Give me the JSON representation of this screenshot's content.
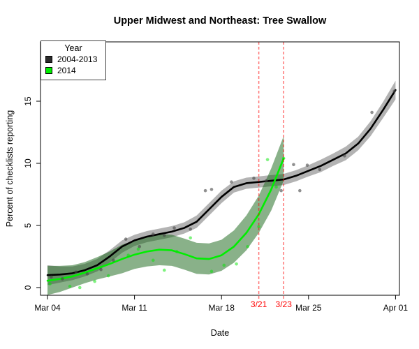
{
  "title": "Upper Midwest and Northeast: Tree Swallow",
  "legend": {
    "title": "Year",
    "items": [
      {
        "label": "2004-2013",
        "color": "#2b2b2b"
      },
      {
        "label": "2014",
        "color": "#00ee00"
      }
    ]
  },
  "chart_data": {
    "type": "line",
    "title": "Upper Midwest and Northeast: Tree Swallow",
    "xlabel": "Date",
    "ylabel": "Percent of checklists reporting",
    "x_unit": "days since Mar 04",
    "xlim_days": [
      0,
      28
    ],
    "ylim": [
      -0.6,
      19.8
    ],
    "grid": false,
    "legend_position": "top-left",
    "x_ticks": [
      {
        "day": 0,
        "label": "Mar 04"
      },
      {
        "day": 7,
        "label": "Mar 11"
      },
      {
        "day": 14,
        "label": "Mar 18"
      },
      {
        "day": 21,
        "label": "Mar 25"
      },
      {
        "day": 28,
        "label": "Apr 01"
      }
    ],
    "y_ticks": [
      {
        "value": 0,
        "label": "0"
      },
      {
        "value": 5,
        "label": "5"
      },
      {
        "value": 10,
        "label": "10"
      },
      {
        "value": 15,
        "label": "15"
      }
    ],
    "series": [
      {
        "name": "2004-2013",
        "line_color": "#000000",
        "band_color": "rgba(128,128,128,0.6)",
        "point_color": "rgba(70,70,70,0.6)",
        "x": [
          0,
          1,
          2,
          3,
          4,
          5,
          6,
          7,
          8,
          9,
          10,
          11,
          12,
          13,
          14,
          15,
          16,
          17,
          18,
          19,
          20,
          21,
          22,
          23,
          24,
          25,
          26,
          27,
          28
        ],
        "y": [
          1.0,
          1.05,
          1.15,
          1.4,
          1.8,
          2.5,
          3.3,
          3.8,
          4.1,
          4.3,
          4.5,
          4.8,
          5.3,
          6.3,
          7.3,
          8.1,
          8.4,
          8.5,
          8.6,
          8.7,
          9.0,
          9.4,
          9.8,
          10.3,
          10.8,
          11.6,
          12.8,
          14.3,
          15.9
        ],
        "band_lo": [
          0.2,
          0.4,
          0.6,
          0.9,
          1.3,
          2.0,
          2.8,
          3.35,
          3.65,
          3.85,
          4.05,
          4.35,
          4.8,
          5.8,
          6.8,
          7.65,
          7.95,
          8.05,
          8.15,
          8.25,
          8.55,
          8.95,
          9.3,
          9.8,
          10.25,
          11.05,
          12.2,
          13.65,
          15.15
        ],
        "band_hi": [
          1.8,
          1.7,
          1.7,
          1.9,
          2.3,
          3.0,
          3.8,
          4.25,
          4.55,
          4.75,
          4.95,
          5.25,
          5.8,
          6.8,
          7.8,
          8.55,
          8.85,
          8.95,
          9.05,
          9.15,
          9.45,
          9.85,
          10.3,
          10.8,
          11.35,
          12.15,
          13.4,
          14.95,
          16.65
        ],
        "points": [
          [
            0.3,
            0.85
          ],
          [
            1.2,
            0.7
          ],
          [
            2.3,
            1.25
          ],
          [
            3.2,
            1.1
          ],
          [
            4.3,
            1.45
          ],
          [
            5.3,
            2.2
          ],
          [
            6.3,
            3.9
          ],
          [
            7.4,
            3.3
          ],
          [
            8.5,
            4.3
          ],
          [
            9.4,
            4.2
          ],
          [
            10.2,
            4.8
          ],
          [
            11.5,
            4.7
          ],
          [
            12.7,
            7.8
          ],
          [
            13.2,
            7.9
          ],
          [
            14.8,
            8.5
          ],
          [
            16.6,
            8.8
          ],
          [
            17.6,
            8.6
          ],
          [
            18.8,
            7.8
          ],
          [
            19.8,
            9.9
          ],
          [
            20.3,
            7.8
          ],
          [
            20.9,
            9.85
          ],
          [
            21.9,
            9.5
          ],
          [
            23.9,
            10.6
          ],
          [
            26.1,
            14.1
          ],
          [
            27.9,
            15.8
          ]
        ]
      },
      {
        "name": "2014",
        "line_color": "#00ee00",
        "band_color": "rgba(20,100,20,0.5)",
        "point_color": "rgba(0,230,0,0.5)",
        "x": [
          0,
          1,
          2,
          3,
          4,
          5,
          6,
          7,
          8,
          9,
          10,
          11,
          12,
          13,
          14,
          15,
          16,
          17,
          18,
          19
        ],
        "y": [
          0.55,
          0.7,
          0.9,
          1.2,
          1.55,
          1.9,
          2.3,
          2.65,
          2.9,
          3.05,
          3.0,
          2.7,
          2.35,
          2.3,
          2.6,
          3.3,
          4.4,
          5.9,
          7.9,
          10.4
        ],
        "band_lo": [
          -0.6,
          -0.35,
          0.0,
          0.35,
          0.65,
          0.9,
          1.15,
          1.5,
          1.7,
          1.8,
          1.75,
          1.45,
          1.1,
          1.05,
          1.35,
          2.0,
          3.0,
          4.4,
          6.2,
          8.6
        ],
        "band_hi": [
          1.75,
          1.75,
          1.8,
          2.05,
          2.45,
          2.9,
          3.45,
          3.8,
          4.1,
          4.3,
          4.25,
          3.95,
          3.6,
          3.55,
          3.85,
          4.6,
          5.8,
          7.4,
          9.6,
          12.2
        ],
        "points": [
          [
            0.2,
            0.3
          ],
          [
            1.8,
            0.1
          ],
          [
            2.6,
            0.0
          ],
          [
            3.8,
            0.5
          ],
          [
            4.9,
            0.95
          ],
          [
            6.5,
            2.6
          ],
          [
            7.3,
            3.1
          ],
          [
            8.5,
            2.2
          ],
          [
            9.4,
            1.4
          ],
          [
            10.4,
            2.9
          ],
          [
            11.5,
            4.0
          ],
          [
            13.2,
            1.3
          ],
          [
            14.2,
            1.8
          ],
          [
            15.2,
            1.9
          ],
          [
            16.1,
            3.3
          ],
          [
            17.0,
            4.9
          ],
          [
            17.7,
            10.3
          ],
          [
            18.4,
            8.1
          ],
          [
            19.0,
            10.4
          ]
        ]
      }
    ],
    "vlines": [
      {
        "day": 17,
        "label": "3/21"
      },
      {
        "day": 19,
        "label": "3/23"
      }
    ],
    "vline_color": "#ff0000"
  }
}
